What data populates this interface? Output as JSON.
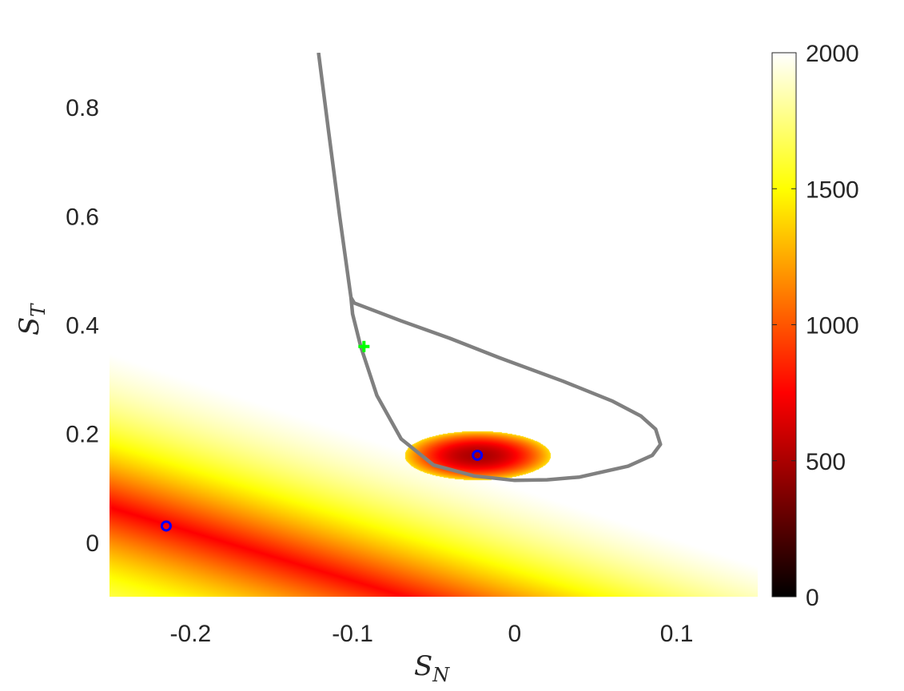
{
  "chart_data": {
    "type": "heatmap",
    "title": "",
    "xlabel": "S",
    "xlabel_sub": "N",
    "ylabel": "S",
    "ylabel_sub": "T",
    "xlim": [
      -0.25,
      0.15
    ],
    "ylim": [
      -0.1,
      0.9
    ],
    "x_ticks": [
      -0.2,
      -0.1,
      0,
      0.1
    ],
    "x_tick_labels": [
      "-0.2",
      "-0.1",
      "0",
      "0.1"
    ],
    "y_ticks": [
      0,
      0.2,
      0.4,
      0.6,
      0.8
    ],
    "y_tick_labels": [
      "0",
      "0.2",
      "0.4",
      "0.6",
      "0.8"
    ],
    "colorbar": {
      "range": [
        0,
        2000
      ],
      "ticks": [
        0,
        500,
        1000,
        1500,
        2000
      ],
      "tick_labels": [
        "0",
        "500",
        "1000",
        "1500",
        "2000"
      ],
      "colormap": "hot"
    },
    "boundary_curve": {
      "color": "#808080",
      "points": [
        [
          -0.121,
          0.9
        ],
        [
          -0.115,
          0.76
        ],
        [
          -0.108,
          0.6
        ],
        [
          -0.101,
          0.45
        ],
        [
          -0.099,
          0.44
        ],
        [
          -0.07,
          0.407
        ],
        [
          -0.04,
          0.375
        ],
        [
          -0.01,
          0.34
        ],
        [
          0.03,
          0.296
        ],
        [
          0.06,
          0.26
        ],
        [
          0.078,
          0.232
        ],
        [
          0.087,
          0.208
        ],
        [
          0.09,
          0.18
        ],
        [
          0.085,
          0.16
        ],
        [
          0.07,
          0.14
        ],
        [
          0.04,
          0.12
        ],
        [
          0.02,
          0.115
        ],
        [
          0,
          0.114
        ],
        [
          -0.025,
          0.122
        ],
        [
          -0.05,
          0.142
        ],
        [
          -0.07,
          0.19
        ],
        [
          -0.085,
          0.27
        ],
        [
          -0.095,
          0.36
        ],
        [
          -0.1,
          0.42
        ],
        [
          -0.101,
          0.45
        ]
      ]
    },
    "markers": [
      {
        "shape": "circle",
        "color": "#0000ff",
        "x": -0.215,
        "y": 0.03
      },
      {
        "shape": "circle",
        "color": "#0000ff",
        "x": -0.023,
        "y": 0.16
      },
      {
        "shape": "plus",
        "color": "#00ff00",
        "x": -0.093,
        "y": 0.36
      }
    ]
  }
}
